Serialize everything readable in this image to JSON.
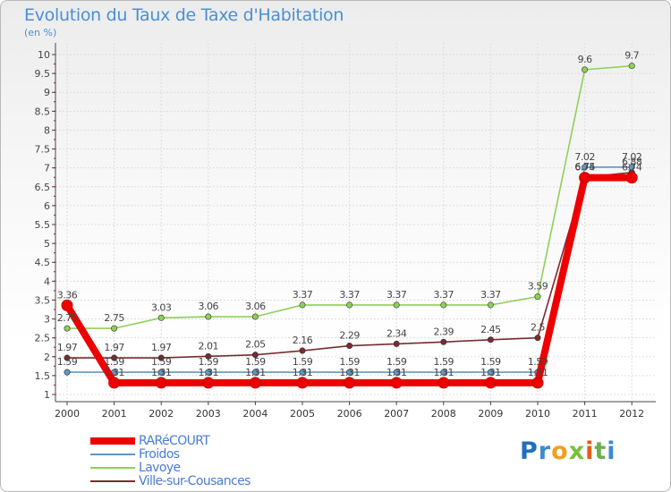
{
  "chart_data": {
    "type": "line",
    "title": "Evolution du Taux de Taxe d'Habitation",
    "subtitle": "(en %)",
    "x": [
      "2000",
      "2001",
      "2002",
      "2003",
      "2004",
      "2005",
      "2006",
      "2007",
      "2008",
      "2009",
      "2010",
      "2011",
      "2012"
    ],
    "ylim": [
      1,
      10
    ],
    "yticks": [
      "1",
      "1.5",
      "2",
      "2.5",
      "3",
      "3.5",
      "4",
      "4.5",
      "5",
      "5.5",
      "6",
      "6.5",
      "7",
      "7.5",
      "8",
      "8.5",
      "9",
      "9.5",
      "10"
    ],
    "grid": true,
    "legend_position": "bottom-left",
    "series": [
      {
        "name": "RARéCOURT",
        "color": "#ee0000",
        "values": [
          3.36,
          1.31,
          1.31,
          1.31,
          1.31,
          1.31,
          1.31,
          1.31,
          1.31,
          1.31,
          1.31,
          6.74,
          6.74
        ],
        "labels": [
          "3.36",
          "1.31",
          "1.31",
          "1.31",
          "1.31",
          "1.31",
          "1.31",
          "1.31",
          "1.31",
          "1.31",
          "1.31",
          "6.74",
          "6.74"
        ]
      },
      {
        "name": "Froidos",
        "color": "#5f97c6",
        "values": [
          1.59,
          1.59,
          1.59,
          1.59,
          1.59,
          1.59,
          1.59,
          1.59,
          1.59,
          1.59,
          1.59,
          7.02,
          7.02
        ],
        "labels": [
          "1.59",
          "1.59",
          "1.59",
          "1.59",
          "1.59",
          "1.59",
          "1.59",
          "1.59",
          "1.59",
          "1.59",
          "1.59",
          "7.02",
          "7.02"
        ]
      },
      {
        "name": "Lavoye",
        "color": "#8ed058",
        "values": [
          2.75,
          2.75,
          3.03,
          3.06,
          3.06,
          3.37,
          3.37,
          3.37,
          3.37,
          3.37,
          3.59,
          9.6,
          9.7
        ],
        "labels": [
          "2.75",
          "2.75",
          "3.03",
          "3.06",
          "3.06",
          "3.37",
          "3.37",
          "3.37",
          "3.37",
          "3.37",
          "3.59",
          "9.6",
          "9.7"
        ]
      },
      {
        "name": "Ville-sur-Cousances",
        "color": "#7a2b30",
        "values": [
          1.97,
          1.97,
          1.97,
          2.01,
          2.05,
          2.16,
          2.29,
          2.34,
          2.39,
          2.45,
          2.5,
          6.75,
          6.88
        ],
        "labels": [
          "1.97",
          "1.97",
          "1.97",
          "2.01",
          "2.05",
          "2.16",
          "2.29",
          "2.34",
          "2.39",
          "2.45",
          "2.5",
          "6.75",
          "6.88"
        ]
      }
    ]
  },
  "logo": {
    "letters": [
      "P",
      "r",
      "o",
      "x",
      "i",
      "t",
      "i"
    ],
    "colors": [
      "#1e6fc0",
      "#3d8ad0",
      "#f0a020",
      "#7bbf3a",
      "#e65c10",
      "#6ab04c",
      "#3d8ad0"
    ]
  }
}
